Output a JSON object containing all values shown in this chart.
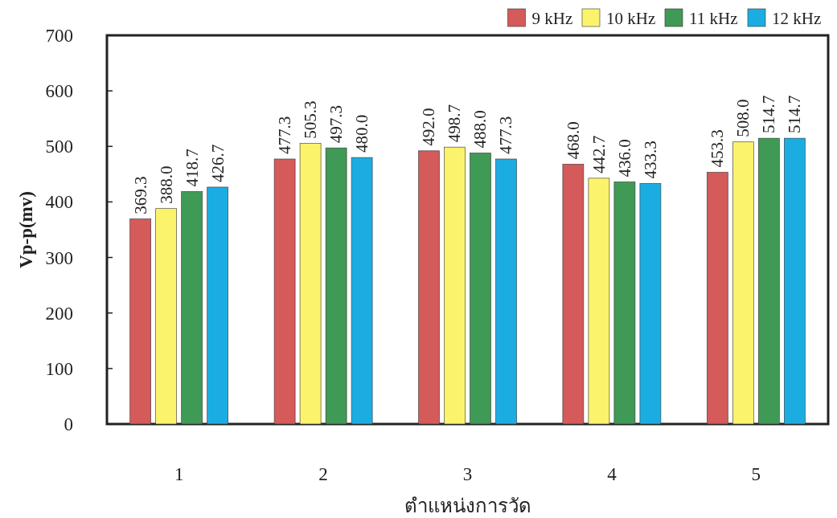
{
  "chart_data": {
    "type": "bar",
    "xlabel": "ตำแหน่งการวัด",
    "ylabel": "Vp-p(mv)",
    "categories": [
      "1",
      "2",
      "3",
      "4",
      "5"
    ],
    "series": [
      {
        "name": "9 kHz",
        "color": "#d55a5a",
        "values": [
          369.3,
          477.3,
          492.0,
          468.0,
          453.3
        ],
        "value_labels": [
          "369.3",
          "477.3",
          "492.0",
          "468.0",
          "453.3"
        ]
      },
      {
        "name": "10 kHz",
        "color": "#fbf36c",
        "values": [
          388.0,
          505.3,
          498.7,
          442.7,
          508.0
        ],
        "value_labels": [
          "388.0",
          "505.3",
          "498.7",
          "442.7",
          "508.0"
        ]
      },
      {
        "name": "11 kHz",
        "color": "#3f9a55",
        "values": [
          418.7,
          497.3,
          488.0,
          436.0,
          514.7
        ],
        "value_labels": [
          "418.7",
          "497.3",
          "488.0",
          "436.0",
          "514.7"
        ]
      },
      {
        "name": "12 kHz",
        "color": "#1badE2",
        "values": [
          426.7,
          480.0,
          477.3,
          433.3,
          514.7
        ],
        "value_labels": [
          "426.7",
          "480.0",
          "477.3",
          "433.3",
          "514.7"
        ]
      }
    ],
    "ylim": [
      0,
      700
    ],
    "yticks": [
      0,
      100,
      200,
      300,
      400,
      500,
      600,
      700
    ],
    "legend": "top right"
  }
}
